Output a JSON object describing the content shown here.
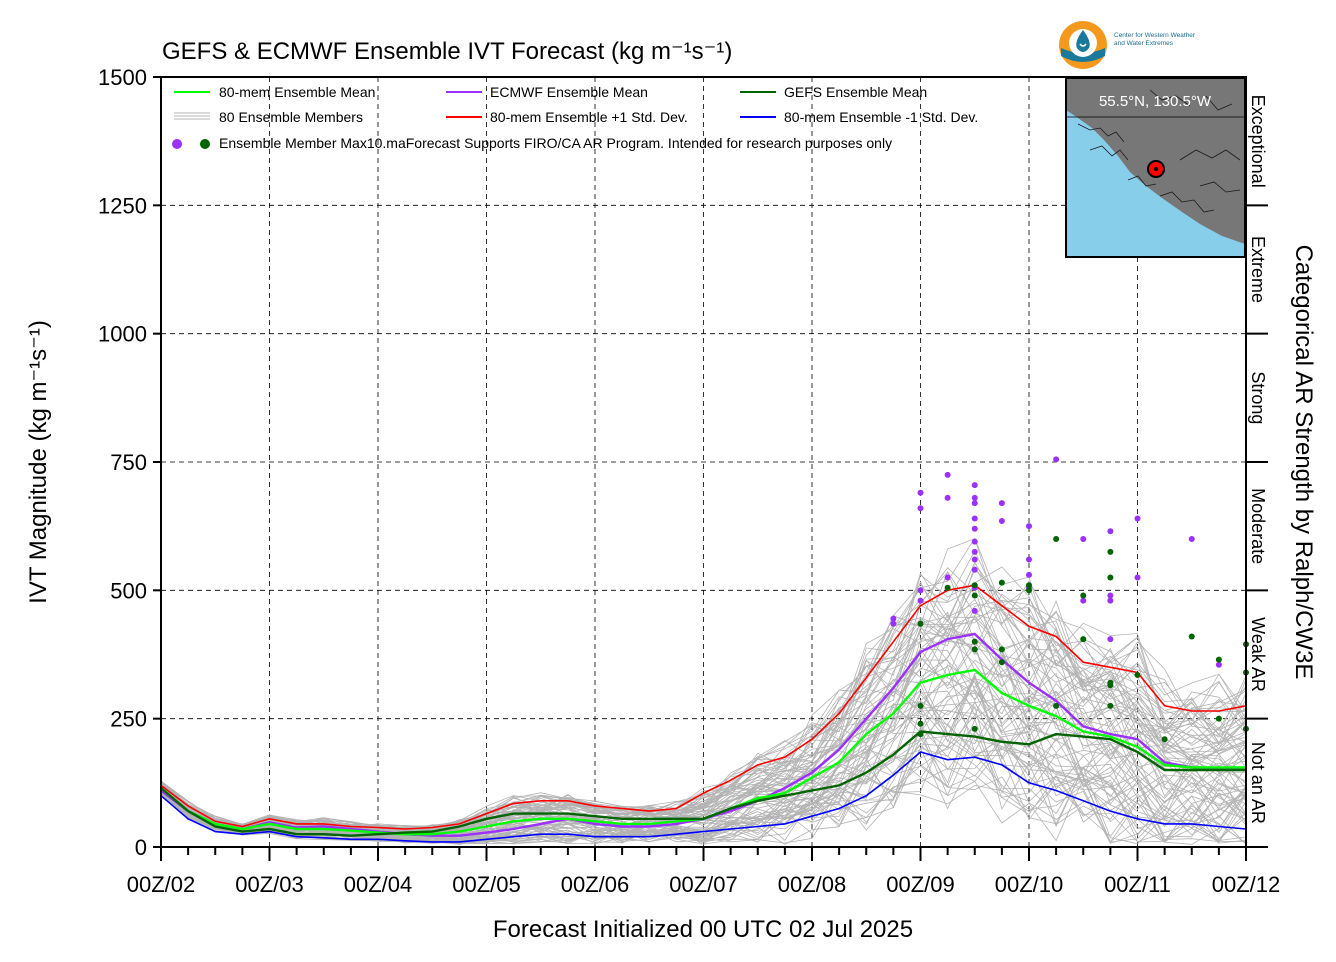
{
  "title": "GEFS & ECMWF Ensemble IVT Forecast (kg m⁻¹s⁻¹)",
  "xlabel": "Forecast Initialized 00 UTC 02 Jul 2025",
  "ylabel": "IVT Magnitude (kg m⁻¹s⁻¹)",
  "right_axis_label": "Categorical AR Strength by Ralph/CW3E",
  "categories": [
    {
      "label": "Not an AR",
      "from": 0,
      "to": 250
    },
    {
      "label": "Weak AR",
      "from": 250,
      "to": 500
    },
    {
      "label": "Moderate",
      "from": 500,
      "to": 750
    },
    {
      "label": "Strong",
      "from": 750,
      "to": 1000
    },
    {
      "label": "Extreme",
      "from": 1000,
      "to": 1250
    },
    {
      "label": "Exceptional",
      "from": 1250,
      "to": 1500
    }
  ],
  "legend": {
    "row1": [
      "80-mem Ensemble Mean",
      "ECMWF Ensemble Mean",
      "GEFS Ensemble Mean"
    ],
    "row2": [
      "80 Ensemble Members",
      "80-mem Ensemble +1 Std. Dev.",
      "80-mem Ensemble -1 Std. Dev."
    ],
    "row3": "Ensemble Member Max10.maForecast Supports FIRO/CA AR Program. Intended for research purposes only"
  },
  "inset": {
    "location": "55.5°N, 130.5°W",
    "land_color": "#777777",
    "water_color": "#87ceeb"
  },
  "logo": {
    "line1": "Center for Western Weather",
    "line2": "and Water Extremes",
    "icon": "cw3e-water-drop-logo"
  },
  "colors": {
    "ens_mean": "#00ff00",
    "ecmwf_mean": "#9b30ff",
    "gefs_mean": "#006400",
    "members": "#b3b3b3",
    "plus_sd": "#ff0000",
    "minus_sd": "#0000ff",
    "max_ecmwf": "#9b30ff",
    "max_gefs": "#006400"
  },
  "chart_data": {
    "type": "line",
    "title": "GEFS & ECMWF Ensemble IVT Forecast (kg m⁻¹s⁻¹)",
    "xlabel": "Forecast Initialized 00 UTC 02 Jul 2025",
    "ylabel": "IVT Magnitude (kg m⁻¹s⁻¹)",
    "x_ticks": [
      "00Z/02",
      "00Z/03",
      "00Z/04",
      "00Z/05",
      "00Z/06",
      "00Z/07",
      "00Z/08",
      "00Z/09",
      "00Z/10",
      "00Z/11",
      "00Z/12"
    ],
    "y_ticks": [
      0,
      250,
      500,
      750,
      1000,
      1250,
      1500
    ],
    "ylim": [
      0,
      1500
    ],
    "xlim_days": [
      2,
      12
    ],
    "grid": true,
    "legend_position": "top-left",
    "series": [
      {
        "name": "80-mem Ensemble Mean",
        "color": "#00ff00",
        "x": [
          2.0,
          2.25,
          2.5,
          2.75,
          3.0,
          3.25,
          3.5,
          3.75,
          4.0,
          4.25,
          4.5,
          4.75,
          5.0,
          5.25,
          5.5,
          5.75,
          6.0,
          6.25,
          6.5,
          6.75,
          7.0,
          7.25,
          7.5,
          7.75,
          8.0,
          8.25,
          8.5,
          8.75,
          9.0,
          9.25,
          9.5,
          9.75,
          10.0,
          10.25,
          10.5,
          10.75,
          11.0,
          11.25,
          11.5,
          11.75,
          12.0
        ],
        "y": [
          115,
          70,
          45,
          35,
          45,
          35,
          35,
          32,
          28,
          25,
          25,
          30,
          40,
          50,
          55,
          55,
          50,
          45,
          45,
          50,
          55,
          75,
          95,
          105,
          135,
          165,
          220,
          260,
          320,
          335,
          345,
          300,
          275,
          255,
          225,
          215,
          195,
          160,
          155,
          155,
          155
        ]
      },
      {
        "name": "ECMWF Ensemble Mean",
        "color": "#9b30ff",
        "x": [
          2.0,
          2.25,
          2.5,
          2.75,
          3.0,
          3.25,
          3.5,
          3.75,
          4.0,
          4.25,
          4.5,
          4.75,
          5.0,
          5.25,
          5.5,
          5.75,
          6.0,
          6.25,
          6.5,
          6.75,
          7.0,
          7.25,
          7.5,
          7.75,
          8.0,
          8.25,
          8.5,
          8.75,
          9.0,
          9.25,
          9.5,
          9.75,
          10.0,
          10.25,
          10.5,
          10.75,
          11.0,
          11.25,
          11.5,
          11.75,
          12.0
        ],
        "y": [
          110,
          70,
          45,
          35,
          48,
          38,
          40,
          35,
          30,
          25,
          22,
          22,
          28,
          35,
          45,
          55,
          45,
          40,
          40,
          45,
          55,
          70,
          90,
          115,
          145,
          190,
          250,
          310,
          380,
          405,
          415,
          365,
          320,
          285,
          235,
          220,
          210,
          165,
          155,
          150,
          155
        ]
      },
      {
        "name": "GEFS Ensemble Mean",
        "color": "#006400",
        "x": [
          2.0,
          2.25,
          2.5,
          2.75,
          3.0,
          3.25,
          3.5,
          3.75,
          4.0,
          4.25,
          4.5,
          4.75,
          5.0,
          5.25,
          5.5,
          5.75,
          6.0,
          6.25,
          6.5,
          6.75,
          7.0,
          7.25,
          7.5,
          7.75,
          8.0,
          8.25,
          8.5,
          8.75,
          9.0,
          9.25,
          9.5,
          9.75,
          10.0,
          10.25,
          10.5,
          10.75,
          11.0,
          11.25,
          11.5,
          11.75,
          12.0
        ],
        "y": [
          115,
          70,
          40,
          30,
          35,
          25,
          25,
          22,
          25,
          28,
          30,
          40,
          55,
          65,
          65,
          65,
          60,
          55,
          55,
          55,
          55,
          75,
          90,
          100,
          110,
          120,
          145,
          180,
          225,
          220,
          215,
          205,
          200,
          220,
          215,
          210,
          185,
          150,
          150,
          150,
          150
        ]
      },
      {
        "name": "80-mem Ensemble +1 Std. Dev.",
        "color": "#ff0000",
        "x": [
          2.0,
          2.25,
          2.5,
          2.75,
          3.0,
          3.25,
          3.5,
          3.75,
          4.0,
          4.25,
          4.5,
          4.75,
          5.0,
          5.25,
          5.5,
          5.75,
          6.0,
          6.25,
          6.5,
          6.75,
          7.0,
          7.25,
          7.5,
          7.75,
          8.0,
          8.25,
          8.5,
          8.75,
          9.0,
          9.25,
          9.5,
          9.75,
          10.0,
          10.25,
          10.5,
          10.75,
          11.0,
          11.25,
          11.5,
          11.75,
          12.0
        ],
        "y": [
          120,
          80,
          50,
          40,
          55,
          45,
          45,
          40,
          38,
          35,
          38,
          45,
          65,
          85,
          90,
          90,
          80,
          75,
          70,
          75,
          105,
          130,
          160,
          175,
          210,
          260,
          330,
          400,
          470,
          500,
          510,
          470,
          430,
          410,
          360,
          350,
          340,
          275,
          265,
          265,
          275
        ]
      },
      {
        "name": "80-mem Ensemble -1 Std. Dev.",
        "color": "#0000ff",
        "x": [
          2.0,
          2.25,
          2.5,
          2.75,
          3.0,
          3.25,
          3.5,
          3.75,
          4.0,
          4.25,
          4.5,
          4.75,
          5.0,
          5.25,
          5.5,
          5.75,
          6.0,
          6.25,
          6.5,
          6.75,
          7.0,
          7.25,
          7.5,
          7.75,
          8.0,
          8.25,
          8.5,
          8.75,
          9.0,
          9.25,
          9.5,
          9.75,
          10.0,
          10.25,
          10.5,
          10.75,
          11.0,
          11.25,
          11.5,
          11.75,
          12.0
        ],
        "y": [
          100,
          55,
          30,
          25,
          30,
          20,
          18,
          15,
          15,
          12,
          10,
          10,
          15,
          20,
          25,
          25,
          20,
          20,
          20,
          25,
          30,
          35,
          40,
          45,
          60,
          75,
          100,
          140,
          185,
          170,
          175,
          160,
          125,
          110,
          90,
          70,
          55,
          45,
          45,
          40,
          35
        ]
      }
    ],
    "ensemble_members": {
      "name": "80 Ensemble Members",
      "count": 80,
      "color": "#b3b3b3"
    },
    "max_points": [
      {
        "name": "ECMWF",
        "color": "#9b30ff",
        "points": [
          [
            8.75,
            445
          ],
          [
            8.75,
            435
          ],
          [
            9.0,
            690
          ],
          [
            9.0,
            660
          ],
          [
            9.0,
            500
          ],
          [
            9.0,
            480
          ],
          [
            9.25,
            725
          ],
          [
            9.25,
            680
          ],
          [
            9.25,
            525
          ],
          [
            9.5,
            705
          ],
          [
            9.5,
            680
          ],
          [
            9.5,
            670
          ],
          [
            9.5,
            640
          ],
          [
            9.5,
            620
          ],
          [
            9.5,
            595
          ],
          [
            9.5,
            575
          ],
          [
            9.5,
            560
          ],
          [
            9.5,
            540
          ],
          [
            9.5,
            505
          ],
          [
            9.5,
            460
          ],
          [
            9.75,
            670
          ],
          [
            9.75,
            635
          ],
          [
            10.0,
            625
          ],
          [
            10.0,
            560
          ],
          [
            10.0,
            530
          ],
          [
            10.0,
            505
          ],
          [
            10.25,
            755
          ],
          [
            10.5,
            600
          ],
          [
            10.5,
            480
          ],
          [
            10.75,
            615
          ],
          [
            10.75,
            490
          ],
          [
            10.75,
            480
          ],
          [
            10.75,
            405
          ],
          [
            11.0,
            640
          ],
          [
            11.0,
            525
          ],
          [
            11.5,
            600
          ],
          [
            11.75,
            355
          ]
        ]
      },
      {
        "name": "GEFS",
        "color": "#006400",
        "points": [
          [
            9.0,
            435
          ],
          [
            9.0,
            275
          ],
          [
            9.0,
            240
          ],
          [
            9.0,
            220
          ],
          [
            9.25,
            505
          ],
          [
            9.5,
            400
          ],
          [
            9.5,
            385
          ],
          [
            9.5,
            510
          ],
          [
            9.5,
            490
          ],
          [
            9.5,
            230
          ],
          [
            9.75,
            515
          ],
          [
            9.75,
            385
          ],
          [
            9.75,
            360
          ],
          [
            10.0,
            500
          ],
          [
            10.0,
            510
          ],
          [
            10.25,
            600
          ],
          [
            10.25,
            275
          ],
          [
            10.5,
            490
          ],
          [
            10.5,
            405
          ],
          [
            10.75,
            575
          ],
          [
            10.75,
            320
          ],
          [
            10.75,
            525
          ],
          [
            10.75,
            275
          ],
          [
            10.75,
            315
          ],
          [
            11.0,
            335
          ],
          [
            11.25,
            210
          ],
          [
            11.5,
            410
          ],
          [
            11.75,
            365
          ],
          [
            11.75,
            250
          ],
          [
            12.0,
            340
          ],
          [
            12.0,
            230
          ],
          [
            12.0,
            395
          ]
        ]
      }
    ]
  }
}
